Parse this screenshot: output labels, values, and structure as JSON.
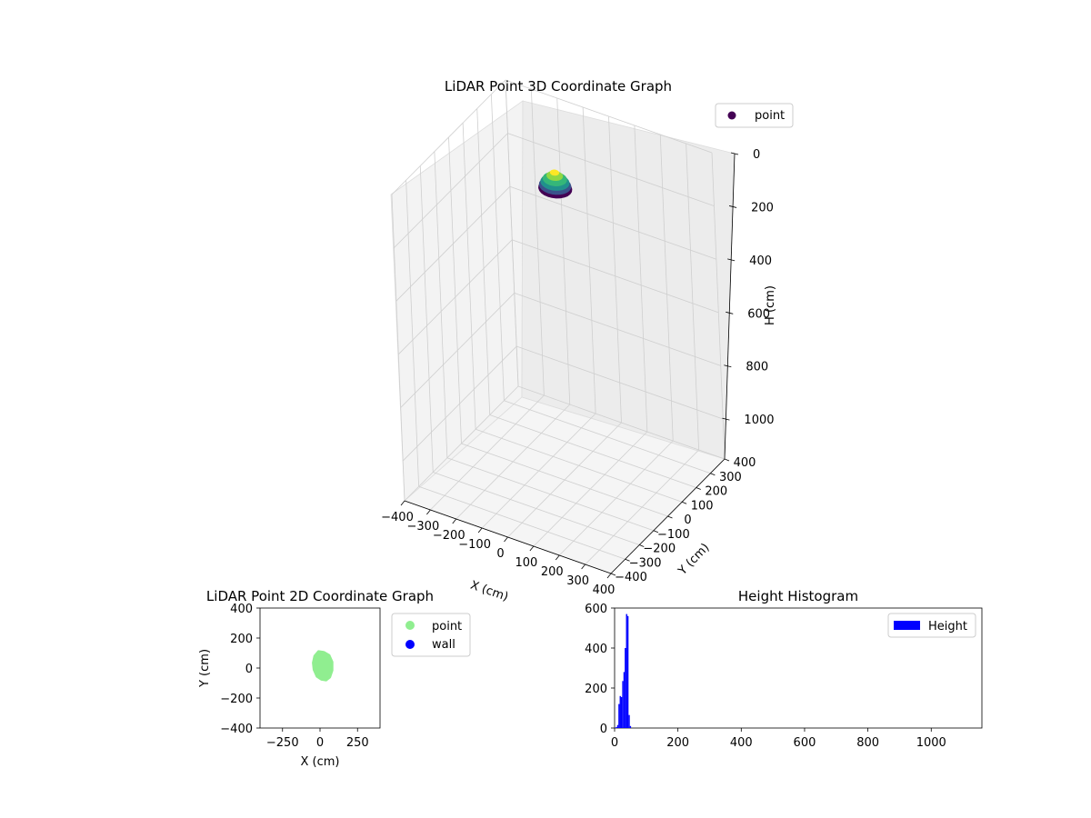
{
  "chart_data": [
    {
      "type": "scatter",
      "projection": "3d",
      "title": "LiDAR Point 3D Coordinate Graph",
      "xlabel": "X (cm)",
      "ylabel": "Y (cm)",
      "zlabel": "H (cm)",
      "xlim": [
        -400,
        400
      ],
      "ylim": [
        -400,
        400
      ],
      "zlim": [
        1150,
        0
      ],
      "z_inverted": true,
      "x_ticks": [
        "−400",
        "−300",
        "−200",
        "−100",
        "0",
        "100",
        "200",
        "300",
        "400"
      ],
      "y_ticks": [
        "−400",
        "−300",
        "−200",
        "−100",
        "0",
        "100",
        "200",
        "300",
        "400"
      ],
      "z_ticks": [
        "0",
        "200",
        "400",
        "600",
        "800",
        "1000"
      ],
      "grid": true,
      "colormap": "viridis",
      "legend": {
        "position": "top-right",
        "entries": [
          {
            "label": "point",
            "color": "#440154"
          }
        ]
      },
      "cluster": {
        "x_range": [
          -50,
          60
        ],
        "y_range": [
          -40,
          60
        ],
        "h_range": [
          0,
          60
        ]
      }
    },
    {
      "type": "scatter",
      "title": "LiDAR Point 2D Coordinate Graph",
      "xlabel": "X (cm)",
      "ylabel": "Y (cm)",
      "xlim": [
        -400,
        400
      ],
      "ylim": [
        -400,
        400
      ],
      "x_ticks": [
        "−250",
        "0",
        "250"
      ],
      "y_ticks": [
        "400",
        "200",
        "0",
        "−200",
        "−400"
      ],
      "grid": false,
      "legend": {
        "position": "outside-right",
        "entries": [
          {
            "label": "point",
            "color": "#90ee90"
          },
          {
            "label": "wall",
            "color": "#0000ff"
          }
        ]
      },
      "series": [
        {
          "name": "point",
          "color": "#90ee90",
          "outline": [
            [
              -10,
              110
            ],
            [
              25,
              105
            ],
            [
              60,
              85
            ],
            [
              80,
              40
            ],
            [
              80,
              -15
            ],
            [
              65,
              -60
            ],
            [
              40,
              -80
            ],
            [
              10,
              -75
            ],
            [
              -20,
              -55
            ],
            [
              -40,
              -10
            ],
            [
              -45,
              35
            ],
            [
              -35,
              80
            ]
          ]
        },
        {
          "name": "wall",
          "color": "#0000ff",
          "points": []
        }
      ]
    },
    {
      "type": "bar",
      "subtype": "histogram",
      "title": "Height Histogram",
      "xlabel": "",
      "ylabel": "",
      "xlim": [
        0,
        1160
      ],
      "ylim": [
        0,
        600
      ],
      "x_ticks": [
        "0",
        "200",
        "400",
        "600",
        "800",
        "1000"
      ],
      "y_ticks": [
        "0",
        "200",
        "400",
        "600"
      ],
      "legend": {
        "position": "top-right",
        "entries": [
          {
            "label": "Height",
            "color": "#0000ff"
          }
        ]
      },
      "bins": [
        {
          "x0": 0,
          "x1": 4,
          "count": 2
        },
        {
          "x0": 4,
          "x1": 8,
          "count": 5
        },
        {
          "x0": 8,
          "x1": 12,
          "count": 15
        },
        {
          "x0": 12,
          "x1": 16,
          "count": 120
        },
        {
          "x0": 16,
          "x1": 20,
          "count": 160
        },
        {
          "x0": 20,
          "x1": 24,
          "count": 155
        },
        {
          "x0": 24,
          "x1": 28,
          "count": 235
        },
        {
          "x0": 28,
          "x1": 32,
          "count": 280
        },
        {
          "x0": 32,
          "x1": 36,
          "count": 400
        },
        {
          "x0": 36,
          "x1": 40,
          "count": 570
        },
        {
          "x0": 40,
          "x1": 44,
          "count": 560
        },
        {
          "x0": 44,
          "x1": 48,
          "count": 65
        },
        {
          "x0": 48,
          "x1": 52,
          "count": 10
        }
      ]
    }
  ]
}
